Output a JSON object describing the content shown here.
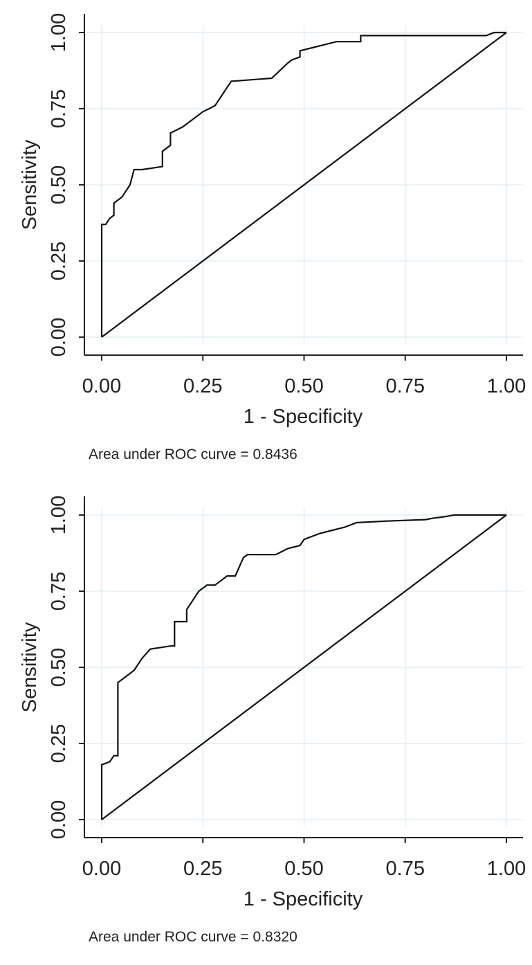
{
  "chart_data": [
    {
      "type": "line",
      "xlabel": "1 - Specificity",
      "ylabel": "Sensitivity",
      "xlim": [
        0,
        1
      ],
      "ylim": [
        0,
        1
      ],
      "xticks": [
        "0.00",
        "0.25",
        "0.50",
        "0.75",
        "1.00"
      ],
      "yticks": [
        "0.00",
        "0.25",
        "0.50",
        "0.75",
        "1.00"
      ],
      "grid": true,
      "note": "Area under ROC curve = 0.8436",
      "series": [
        {
          "x": [
            0,
            0,
            0.01,
            0.02,
            0.03,
            0.03,
            0.05,
            0.07,
            0.08,
            0.1,
            0.15,
            0.15,
            0.17,
            0.17,
            0.2,
            0.23,
            0.25,
            0.28,
            0.3,
            0.32,
            0.42,
            0.46,
            0.47,
            0.49,
            0.49,
            0.52,
            0.55,
            0.58,
            0.64,
            0.64,
            0.95,
            0.97,
            1.0
          ],
          "y": [
            0,
            0.37,
            0.37,
            0.39,
            0.4,
            0.44,
            0.46,
            0.5,
            0.55,
            0.55,
            0.56,
            0.61,
            0.63,
            0.67,
            0.69,
            0.72,
            0.74,
            0.76,
            0.8,
            0.84,
            0.85,
            0.9,
            0.91,
            0.92,
            0.94,
            0.95,
            0.96,
            0.97,
            0.97,
            0.99,
            0.99,
            1.0,
            1.0
          ]
        },
        {
          "x": [
            0,
            1
          ],
          "y": [
            0,
            1
          ]
        }
      ]
    },
    {
      "type": "line",
      "xlabel": "1 - Specificity",
      "ylabel": "Sensitivity",
      "xlim": [
        0,
        1
      ],
      "ylim": [
        0,
        1
      ],
      "xticks": [
        "0.00",
        "0.25",
        "0.50",
        "0.75",
        "1.00"
      ],
      "yticks": [
        "0.00",
        "0.25",
        "0.50",
        "0.75",
        "1.00"
      ],
      "grid": true,
      "note": "Area under ROC curve = 0.8320",
      "series": [
        {
          "x": [
            0,
            0,
            0.02,
            0.03,
            0.04,
            0.04,
            0.06,
            0.08,
            0.1,
            0.12,
            0.17,
            0.18,
            0.18,
            0.21,
            0.21,
            0.23,
            0.24,
            0.26,
            0.28,
            0.3,
            0.31,
            0.33,
            0.35,
            0.36,
            0.43,
            0.46,
            0.49,
            0.5,
            0.54,
            0.57,
            0.6,
            0.62,
            0.63,
            0.7,
            0.8,
            0.82,
            0.85,
            0.87,
            0.95,
            1.0
          ],
          "y": [
            0,
            0.18,
            0.19,
            0.21,
            0.21,
            0.45,
            0.47,
            0.49,
            0.53,
            0.56,
            0.57,
            0.57,
            0.65,
            0.65,
            0.69,
            0.73,
            0.75,
            0.77,
            0.77,
            0.79,
            0.8,
            0.8,
            0.86,
            0.87,
            0.87,
            0.89,
            0.9,
            0.92,
            0.94,
            0.95,
            0.96,
            0.97,
            0.975,
            0.98,
            0.985,
            0.99,
            0.995,
            1.0,
            1.0,
            1.0
          ]
        },
        {
          "x": [
            0,
            1
          ],
          "y": [
            0,
            1
          ]
        }
      ]
    }
  ]
}
